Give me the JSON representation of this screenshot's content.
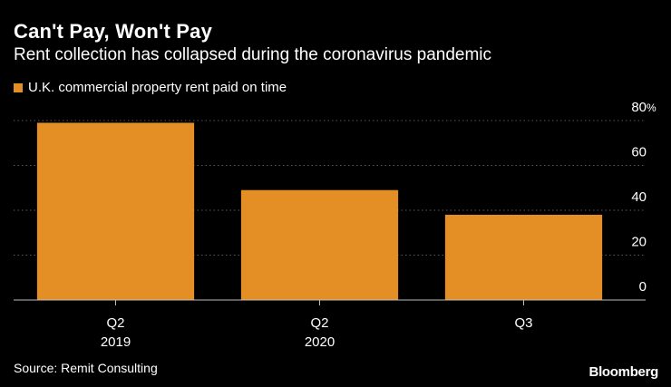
{
  "colors": {
    "background": "#000000",
    "bar": "#E48F25",
    "grid": "#5a5a5a",
    "axis": "#bdbdbd",
    "text": "#ffffff"
  },
  "header": {
    "title": "Can't Pay, Won't Pay",
    "subtitle": "Rent collection has collapsed during the coronavirus pandemic"
  },
  "footer": {
    "source": "Source: Remit Consulting",
    "brand": "Bloomberg"
  },
  "chart_data": {
    "type": "bar",
    "categories": [
      [
        "Q2",
        "2019"
      ],
      [
        "Q2",
        "2020"
      ],
      [
        "Q3",
        ""
      ]
    ],
    "series": [
      {
        "name": "U.K. commercial property rent paid on time",
        "values": [
          79,
          49,
          38
        ]
      }
    ],
    "ylim": [
      0,
      80
    ],
    "yticks": [
      0,
      20,
      40,
      60,
      80
    ],
    "ytick_labels": [
      "0",
      "20",
      "40",
      "60",
      "80"
    ],
    "yunit": "%",
    "grid": true,
    "y_axis_position": "right",
    "legend_position": "top-left"
  }
}
